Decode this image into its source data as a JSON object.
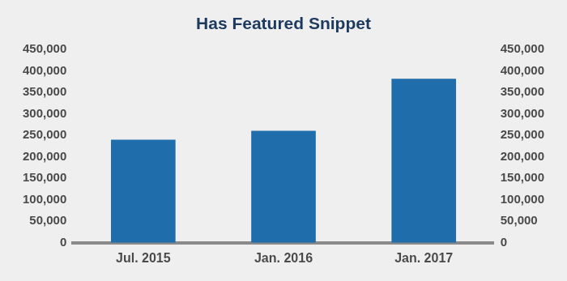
{
  "chart_data": {
    "type": "bar",
    "title": "Has Featured Snippet",
    "categories": [
      "Jul. 2015",
      "Jan. 2016",
      "Jan. 2017"
    ],
    "values": [
      240000,
      261000,
      382000
    ],
    "color": "#1f6eab",
    "ylim": [
      0,
      450000
    ],
    "yticks": [
      0,
      {
        "value": 50000,
        "label": "50,000"
      },
      {
        "value": 100000,
        "label": "100,000"
      },
      {
        "value": 150000,
        "label": "150,000"
      },
      {
        "value": 200000,
        "label": "200,000"
      },
      {
        "value": 250000,
        "label": "250,000"
      },
      {
        "value": 300000,
        "label": "300,000"
      },
      {
        "value": 350000,
        "label": "350,000"
      },
      {
        "value": 400000,
        "label": "400,000"
      },
      {
        "value": 450000,
        "label": "450,000"
      }
    ],
    "y2lim": [
      0,
      450000
    ],
    "y2ticks": [
      0,
      {
        "value": 50000,
        "label": "50,000"
      },
      {
        "value": 100000,
        "label": "100,000"
      },
      {
        "value": 150000,
        "label": "150,000"
      },
      {
        "value": 200000,
        "label": "200,000"
      },
      {
        "value": 250000,
        "label": "250,000"
      },
      {
        "value": 300000,
        "label": "300,000"
      },
      {
        "value": 350000,
        "label": "350,000"
      },
      {
        "value": 400000,
        "label": "400,000"
      },
      {
        "value": 450000,
        "label": "450,000"
      }
    ],
    "grid": false
  }
}
